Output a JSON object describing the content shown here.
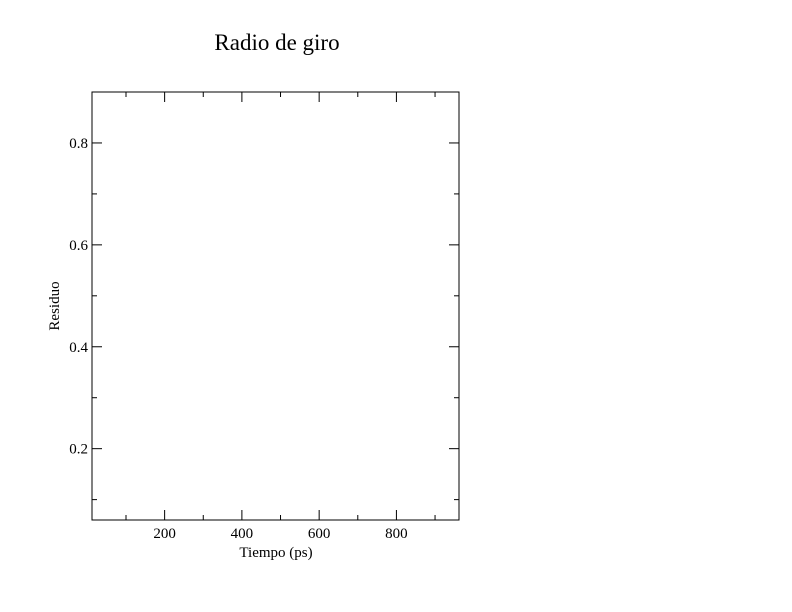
{
  "chart_data": {
    "type": "line",
    "title": "Radio de giro",
    "xlabel": "Tiempo (ps)",
    "ylabel": "Residuo",
    "xlim": [
      12,
      962
    ],
    "ylim": [
      0.06,
      0.9
    ],
    "x_major_ticks": [
      200,
      400,
      600,
      800
    ],
    "x_minor_ticks": [
      100,
      300,
      500,
      700,
      900
    ],
    "y_major_ticks": [
      0.2,
      0.4,
      0.6,
      0.8
    ],
    "y_minor_ticks": [
      0.1,
      0.3,
      0.5,
      0.7
    ],
    "x_tick_labels": [
      "200",
      "400",
      "600",
      "800"
    ],
    "y_tick_labels": [
      "0.2",
      "0.4",
      "0.6",
      "0.8"
    ],
    "grid": false,
    "series": []
  }
}
